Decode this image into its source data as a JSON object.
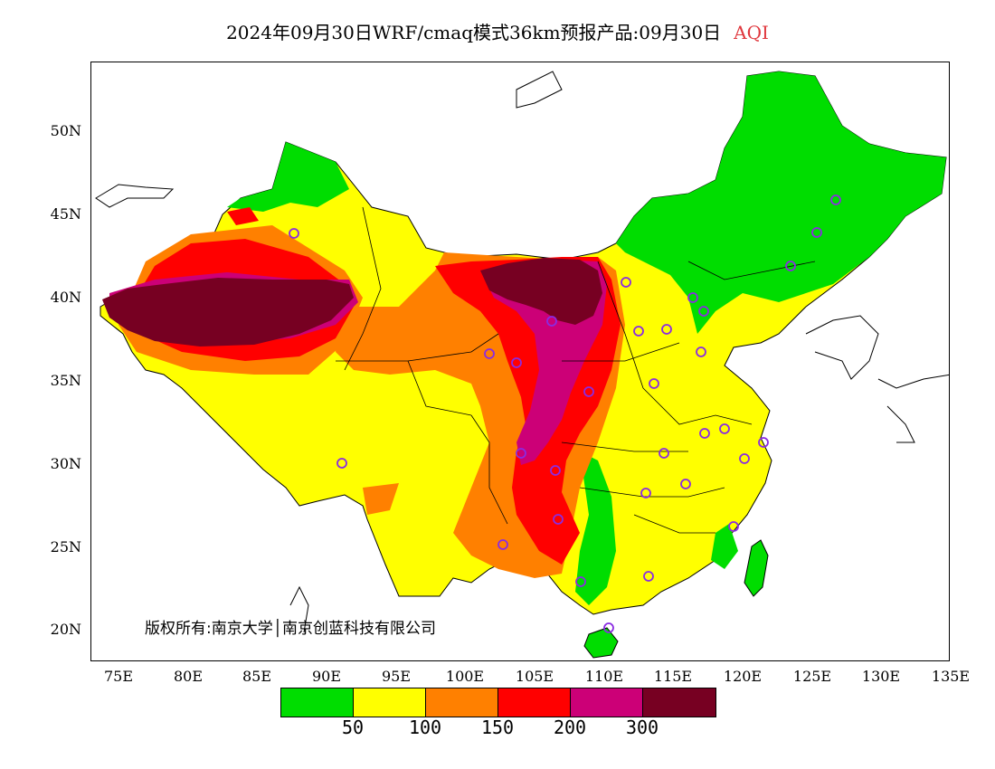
{
  "title": {
    "text": "2024年09月30日WRF/cmaq模式36km预报产品:09月30日",
    "variable": "AQI"
  },
  "axes": {
    "x_labels": [
      "75E",
      "80E",
      "85E",
      "90E",
      "95E",
      "100E",
      "105E",
      "110E",
      "115E",
      "120E",
      "125E",
      "130E",
      "135E"
    ],
    "y_labels": [
      "20N",
      "25N",
      "30N",
      "35N",
      "40N",
      "45N",
      "50N"
    ]
  },
  "copyright": "版权所有:南京大学│南京创蓝科技有限公司",
  "legend": {
    "colors": [
      "#00dd00",
      "#ffff00",
      "#ff8000",
      "#ff0000",
      "#cc0077",
      "#770022"
    ],
    "labels": [
      "50",
      "100",
      "150",
      "200",
      "300"
    ]
  },
  "chart_data": {
    "type": "heatmap",
    "title": "2024年09月30日WRF/cmaq模式36km预报产品:09月30日 AQI",
    "xlim": [
      73,
      135
    ],
    "ylim": [
      18,
      54
    ],
    "categories": [
      "<50",
      "50-100",
      "100-150",
      "150-200",
      "200-300",
      ">300"
    ],
    "thresholds": [
      50,
      100,
      150,
      200,
      300
    ]
  }
}
